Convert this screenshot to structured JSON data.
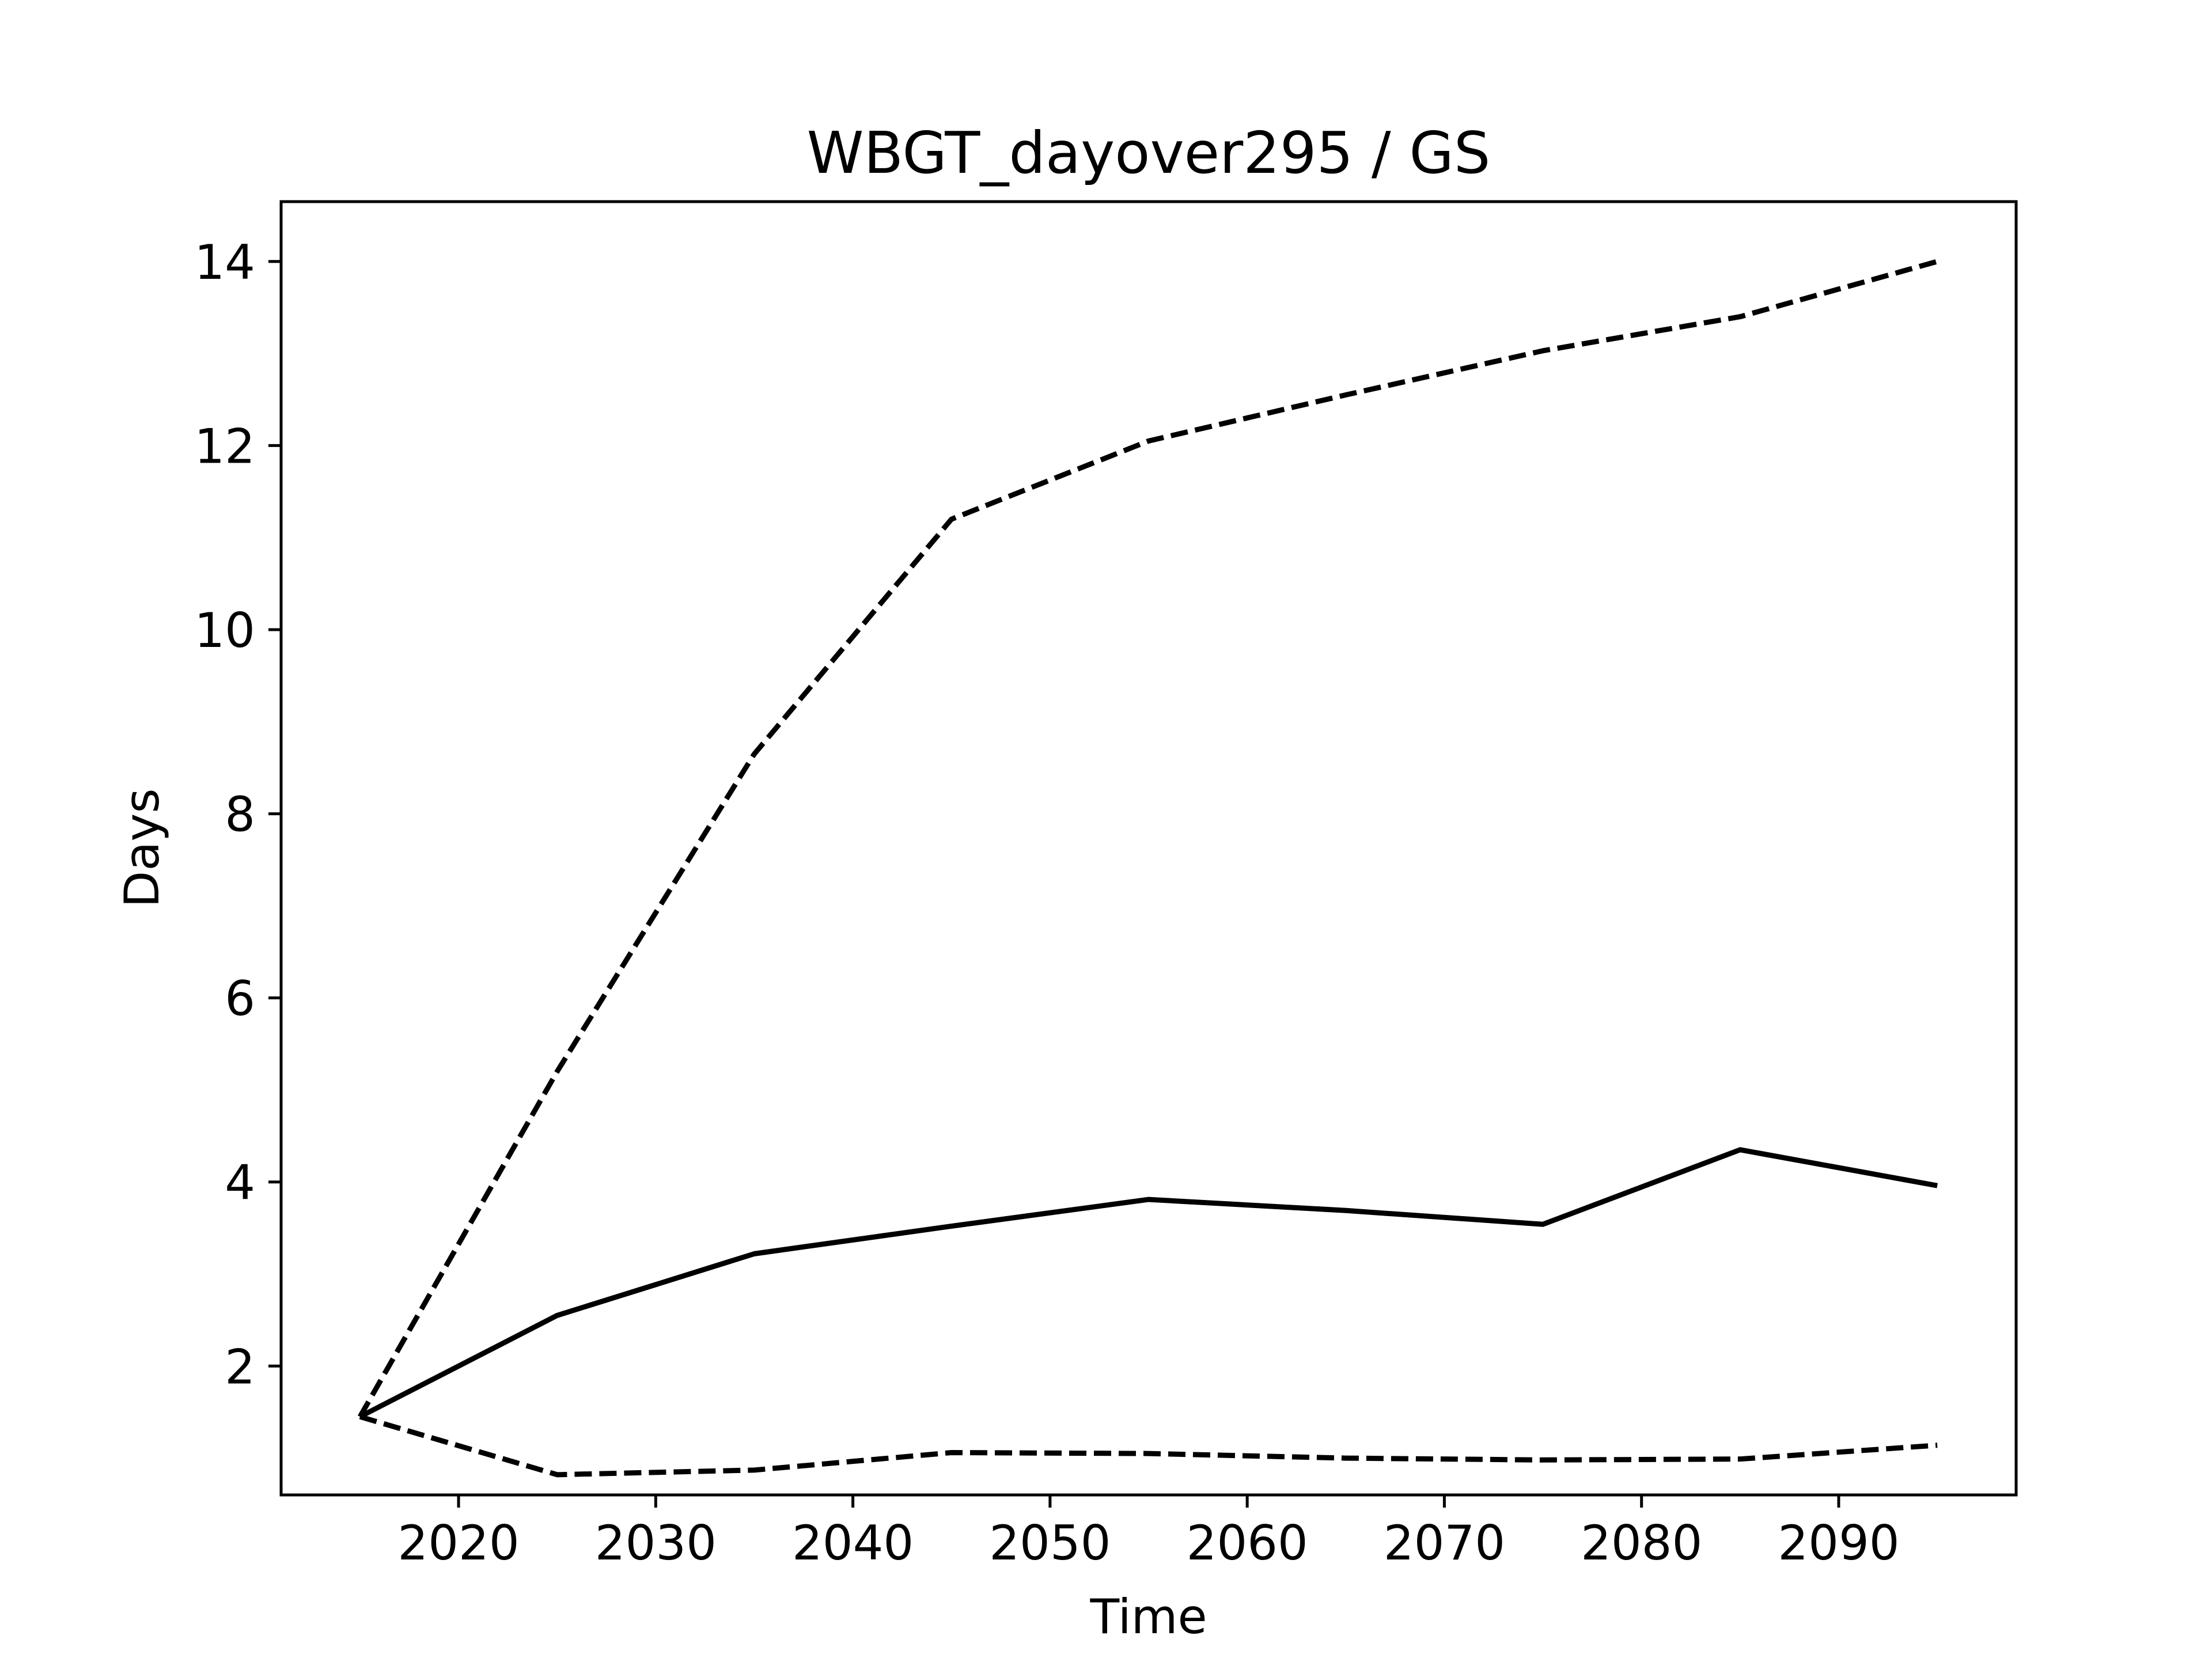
{
  "chart_data": {
    "type": "line",
    "title": "WBGT_dayover295 / GS",
    "xlabel": "Time",
    "ylabel": "Days",
    "x": [
      2015,
      2025,
      2035,
      2045,
      2055,
      2065,
      2075,
      2085,
      2095
    ],
    "series": [
      {
        "style": "solid",
        "values": [
          1.45,
          2.55,
          3.22,
          3.52,
          3.81,
          3.69,
          3.54,
          4.35,
          3.96
        ]
      },
      {
        "style": "dashed",
        "values": [
          1.45,
          5.2,
          8.65,
          11.2,
          12.05,
          12.55,
          13.03,
          13.4,
          14.0
        ]
      },
      {
        "style": "dashed",
        "values": [
          1.45,
          0.82,
          0.87,
          1.06,
          1.05,
          1.0,
          0.98,
          0.99,
          1.14
        ]
      }
    ],
    "xlim": [
      2011,
      2099
    ],
    "ylim": [
      0.6,
      14.65
    ],
    "xticks": [
      "2020",
      "2030",
      "2040",
      "2050",
      "2060",
      "2070",
      "2080",
      "2090"
    ],
    "yticks": [
      "2",
      "4",
      "6",
      "8",
      "10",
      "12",
      "14"
    ],
    "grid": false,
    "legend": "none",
    "line_color": "#000000"
  }
}
